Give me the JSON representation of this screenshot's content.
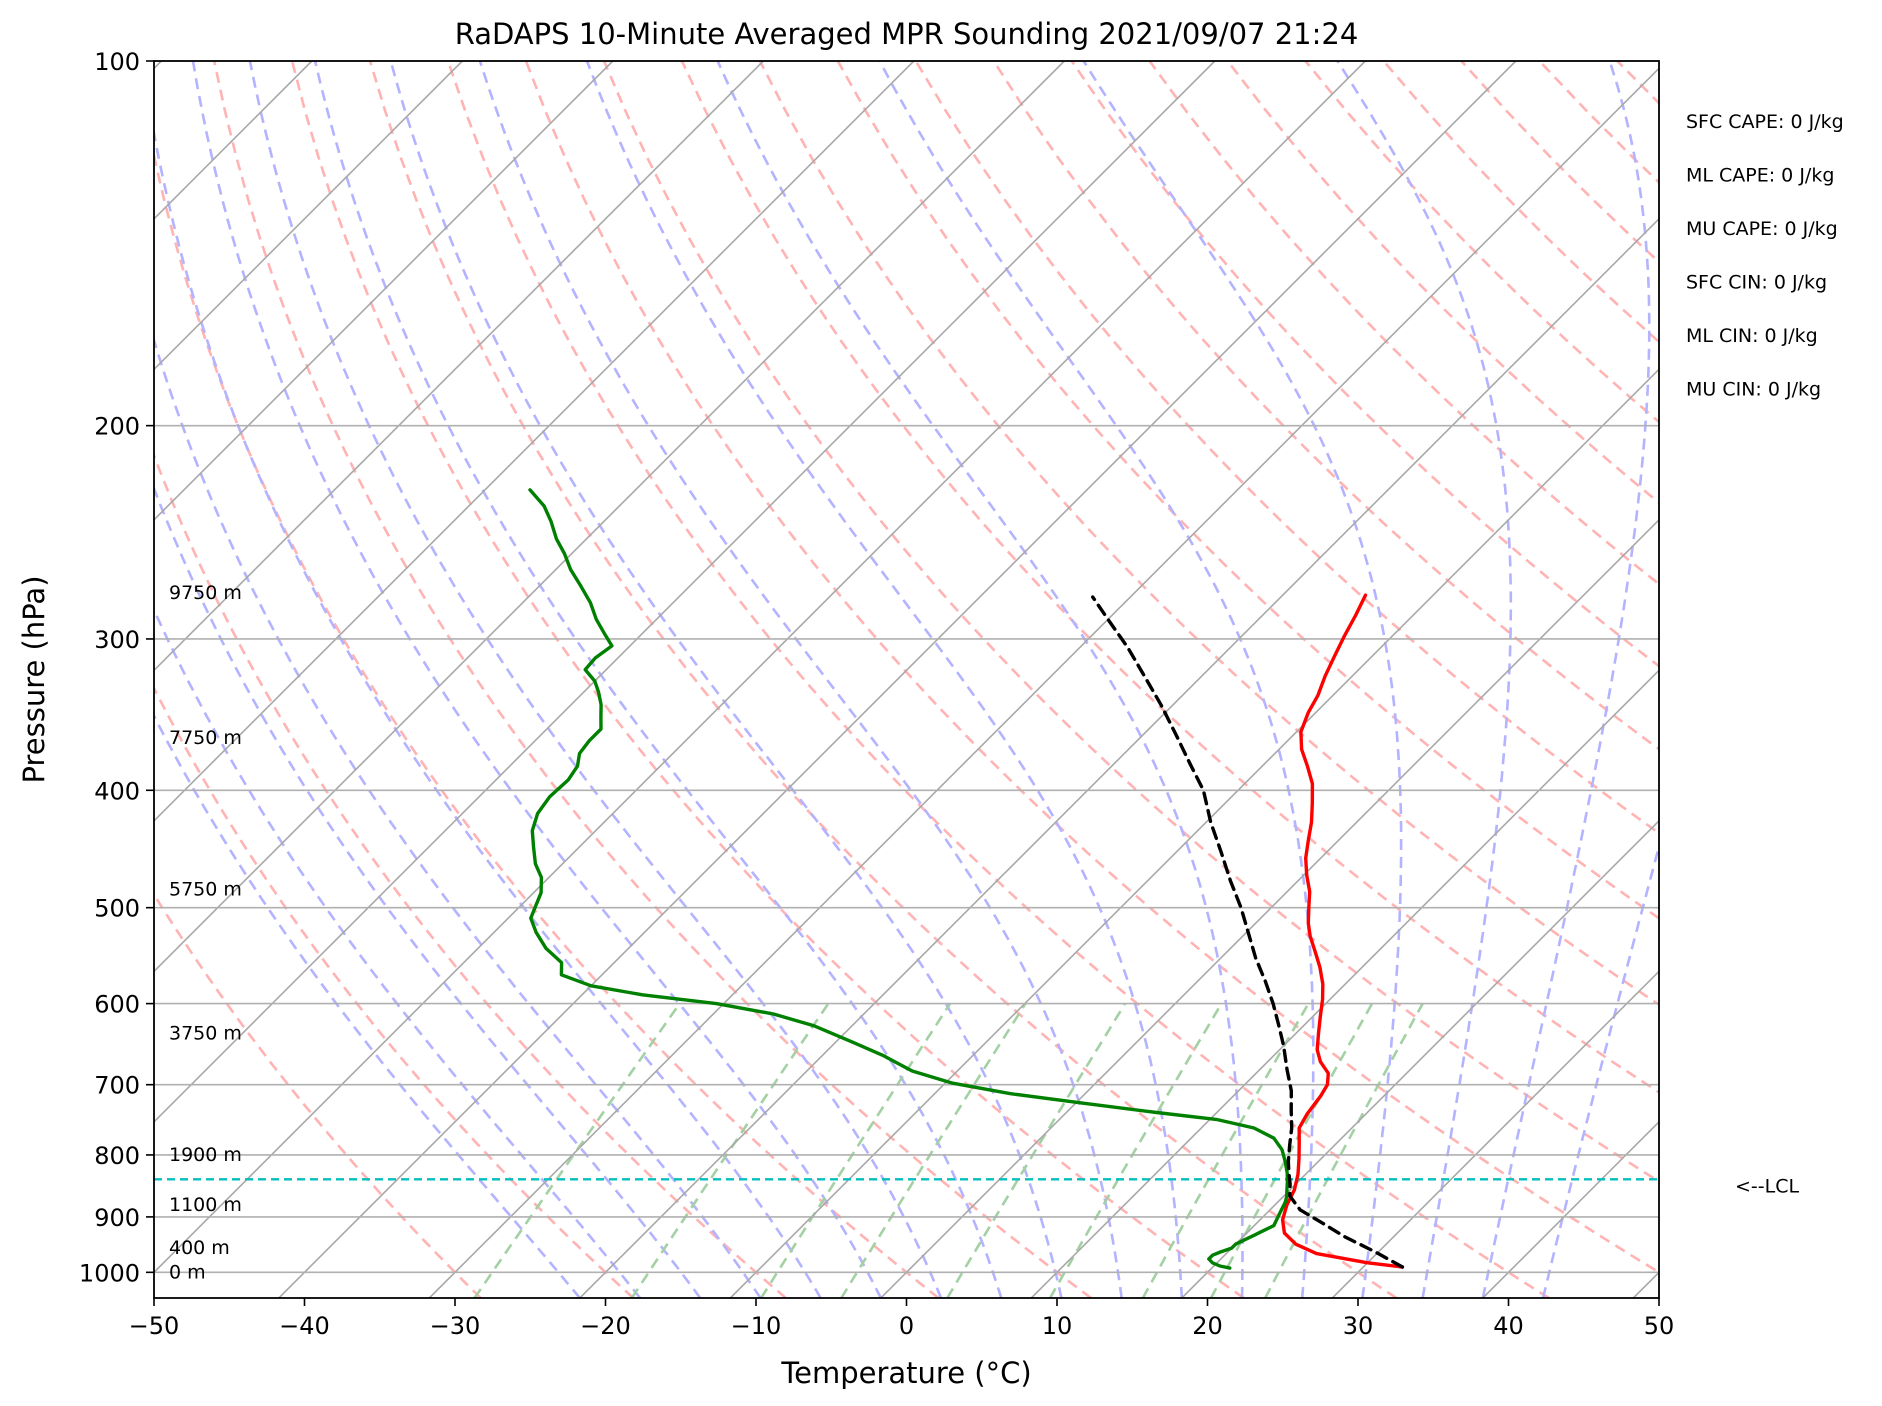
{
  "chart_data": {
    "type": "line",
    "title": "RaDAPS 10-Minute Averaged MPR Sounding 2021/09/07 21:24",
    "xlabel": "Temperature (°C)",
    "ylabel": "Pressure (hPa)",
    "xlim": [
      -50,
      50
    ],
    "ylim": [
      1050,
      100
    ],
    "y_scale": "log",
    "x_ticks": [
      "−50",
      "−40",
      "−30",
      "−20",
      "−10",
      "0",
      "10",
      "20",
      "30",
      "40",
      "50"
    ],
    "y_ticks": [
      {
        "value": 100,
        "label": "100"
      },
      {
        "value": 200,
        "label": "200"
      },
      {
        "value": 300,
        "label": "300"
      },
      {
        "value": 400,
        "label": "400"
      },
      {
        "value": 500,
        "label": "500"
      },
      {
        "value": 600,
        "label": "600"
      },
      {
        "value": 700,
        "label": "700"
      },
      {
        "value": 800,
        "label": "800"
      },
      {
        "value": 900,
        "label": "900"
      },
      {
        "value": 1000,
        "label": "1000"
      }
    ],
    "grid": true,
    "skew": "skew-T log-p",
    "colors": {
      "temperature": "#ff0000",
      "dewpoint": "#008000",
      "parcel": "#000000",
      "lcl": "#00bfbf",
      "isotherm": "#a8a8a8",
      "dry_adiabat": "#ffb3b3",
      "moist_adiabat": "#b3b3ff",
      "mixing_ratio": "#a3d1a3",
      "isobar": "#b0b0b0"
    },
    "series": [
      {
        "key": "temperature",
        "points": [
          [
            32.6,
            990
          ],
          [
            30,
            982
          ],
          [
            26,
            965
          ],
          [
            24,
            948
          ],
          [
            22.5,
            928
          ],
          [
            21.5,
            905
          ],
          [
            20.8,
            880
          ],
          [
            20.3,
            855
          ],
          [
            19.5,
            830
          ],
          [
            18.5,
            805
          ],
          [
            17.5,
            782
          ],
          [
            16.5,
            760
          ],
          [
            16.1,
            740
          ],
          [
            15.8,
            715
          ],
          [
            15.5,
            700
          ],
          [
            14.8,
            685
          ],
          [
            13.5,
            670
          ],
          [
            12.5,
            655
          ],
          [
            11.5,
            635
          ],
          [
            10.5,
            615
          ],
          [
            9.5,
            595
          ],
          [
            8.5,
            578
          ],
          [
            7.2,
            560
          ],
          [
            5.8,
            543
          ],
          [
            4.5,
            528
          ],
          [
            3.5,
            515
          ],
          [
            2.5,
            500
          ],
          [
            1.5,
            485
          ],
          [
            0.2,
            470
          ],
          [
            -1,
            455
          ],
          [
            -2,
            440
          ],
          [
            -3,
            425
          ],
          [
            -4.2,
            410
          ],
          [
            -5.5,
            395
          ],
          [
            -7,
            382
          ],
          [
            -8.5,
            370
          ],
          [
            -9.7,
            358
          ],
          [
            -10.5,
            345
          ],
          [
            -11,
            334
          ],
          [
            -11.8,
            322
          ],
          [
            -12.5,
            310
          ],
          [
            -13.2,
            298
          ],
          [
            -13.8,
            287
          ],
          [
            -14.5,
            276
          ]
        ]
      },
      {
        "key": "dewpoint",
        "points": [
          [
            21.2,
            992
          ],
          [
            20.4,
            988
          ],
          [
            19.7,
            982
          ],
          [
            19.2,
            975
          ],
          [
            19.2,
            968
          ],
          [
            19.5,
            962
          ],
          [
            20,
            955
          ],
          [
            20,
            948
          ],
          [
            20.3,
            940
          ],
          [
            20.6,
            933
          ],
          [
            20.9,
            925
          ],
          [
            21.3,
            915
          ],
          [
            21.1,
            905
          ],
          [
            20.9,
            895
          ],
          [
            20.7,
            885
          ],
          [
            20.5,
            875
          ],
          [
            20.2,
            865
          ],
          [
            19.8,
            855
          ],
          [
            19.3,
            842
          ],
          [
            18.7,
            828
          ],
          [
            17.8,
            810
          ],
          [
            16.8,
            792
          ],
          [
            15.5,
            775
          ],
          [
            13.5,
            760
          ],
          [
            10.5,
            748
          ],
          [
            6,
            738
          ],
          [
            0.5,
            725
          ],
          [
            -5,
            712
          ],
          [
            -9.5,
            698
          ],
          [
            -13,
            682
          ],
          [
            -16,
            662
          ],
          [
            -19,
            645
          ],
          [
            -22.5,
            626
          ],
          [
            -26,
            612
          ],
          [
            -30.5,
            600
          ],
          [
            -36,
            590
          ],
          [
            -40,
            580
          ],
          [
            -42.7,
            568
          ],
          [
            -43.5,
            555
          ],
          [
            -45.5,
            540
          ],
          [
            -47.2,
            524
          ],
          [
            -48.5,
            510
          ],
          [
            -49,
            498
          ],
          [
            -49.5,
            486
          ],
          [
            -50.5,
            472
          ],
          [
            -51.8,
            460
          ],
          [
            -53,
            446
          ],
          [
            -54.2,
            432
          ],
          [
            -55,
            418
          ],
          [
            -55.3,
            405
          ],
          [
            -55.2,
            392
          ],
          [
            -55.5,
            382
          ],
          [
            -56.2,
            373
          ],
          [
            -56.4,
            364
          ],
          [
            -56.4,
            356
          ],
          [
            -57.2,
            348
          ],
          [
            -58,
            340
          ],
          [
            -59,
            332
          ],
          [
            -60,
            325
          ],
          [
            -61.4,
            318
          ],
          [
            -61.5,
            311
          ],
          [
            -61.2,
            304
          ],
          [
            -62.5,
            297
          ],
          [
            -64,
            289
          ],
          [
            -65.5,
            280
          ],
          [
            -67.3,
            271
          ],
          [
            -69,
            263
          ],
          [
            -70.5,
            255
          ],
          [
            -72,
            248
          ],
          [
            -73.5,
            240
          ],
          [
            -75,
            233
          ],
          [
            -77,
            226
          ]
        ]
      },
      {
        "key": "parcel",
        "points": [
          [
            32.6,
            990
          ],
          [
            29.8,
            962
          ],
          [
            26.8,
            935
          ],
          [
            24.3,
            910
          ],
          [
            22,
            888
          ],
          [
            20.4,
            865
          ],
          [
            19.6,
            845
          ],
          [
            18.9,
            830
          ],
          [
            18,
            810
          ],
          [
            17,
            785
          ],
          [
            16,
            760
          ],
          [
            14.8,
            735
          ],
          [
            13.5,
            708
          ],
          [
            11.8,
            680
          ],
          [
            10,
            650
          ],
          [
            8.3,
            625
          ],
          [
            6.5,
            600
          ],
          [
            4.5,
            575
          ],
          [
            2.3,
            550
          ],
          [
            0.2,
            525
          ],
          [
            -2,
            500
          ],
          [
            -4.5,
            475
          ],
          [
            -7,
            450
          ],
          [
            -9.7,
            425
          ],
          [
            -12.3,
            400
          ],
          [
            -15,
            380
          ],
          [
            -17.8,
            360
          ],
          [
            -20.8,
            340
          ],
          [
            -23.8,
            322
          ],
          [
            -26.8,
            305
          ],
          [
            -29.8,
            290
          ],
          [
            -32.5,
            277
          ]
        ]
      }
    ],
    "lcl": {
      "pressure": 838,
      "label": "<--LCL"
    },
    "height_labels": [
      {
        "text": "0 m",
        "pressure": 1000
      },
      {
        "text": "400 m",
        "pressure": 955
      },
      {
        "text": "1100 m",
        "pressure": 880
      },
      {
        "text": "1900 m",
        "pressure": 800
      },
      {
        "text": "3750 m",
        "pressure": 635
      },
      {
        "text": "5750 m",
        "pressure": 483
      },
      {
        "text": "7750 m",
        "pressure": 362
      },
      {
        "text": "9750 m",
        "pressure": 275
      }
    ],
    "indices": [
      {
        "label": "SFC CAPE: 0 J/kg"
      },
      {
        "label": "ML CAPE: 0 J/kg"
      },
      {
        "label": "MU CAPE: 0 J/kg"
      },
      {
        "label": "SFC CIN: 0 J/kg"
      },
      {
        "label": "ML CIN: 0 J/kg"
      },
      {
        "label": "MU CIN: 0 J/kg"
      }
    ]
  }
}
